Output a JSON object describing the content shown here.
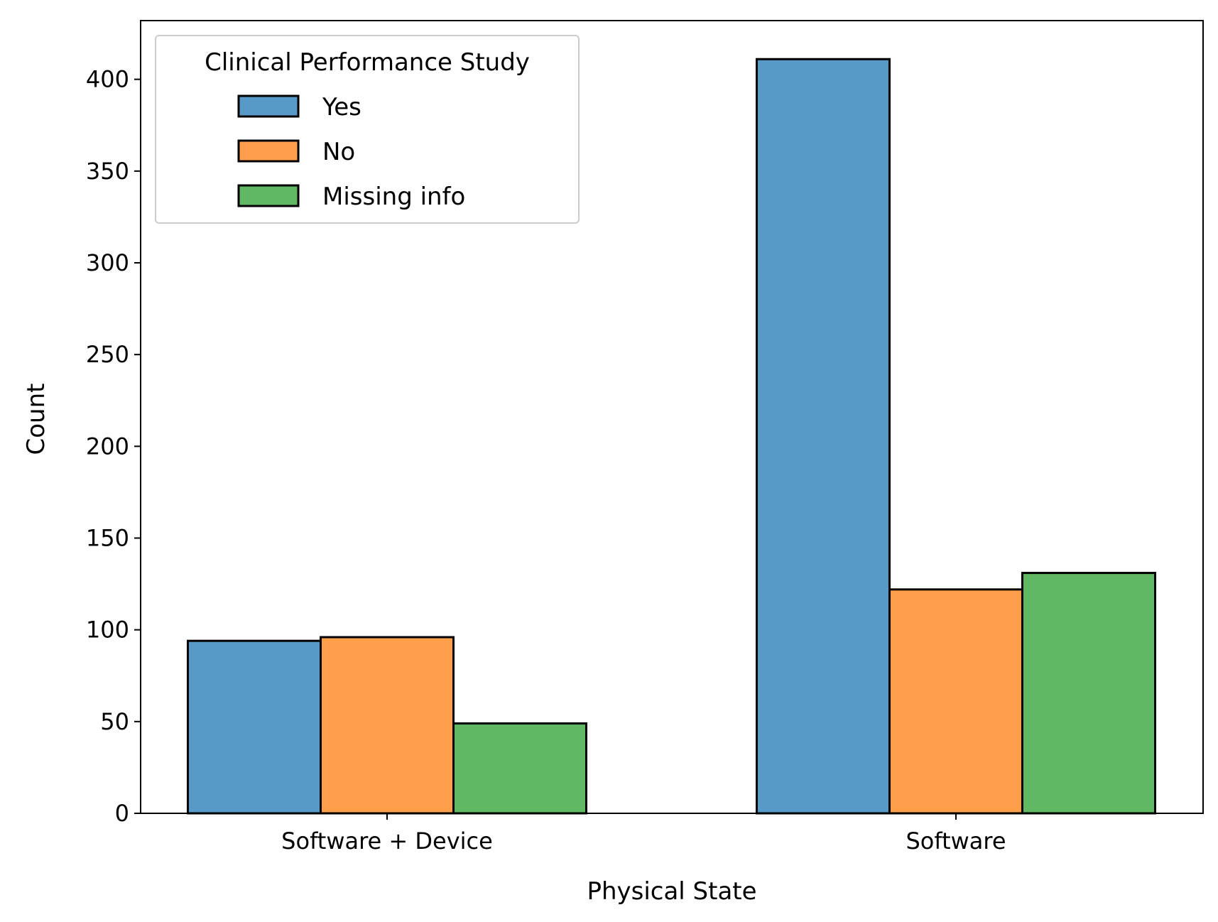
{
  "chart_data": {
    "type": "bar",
    "title": "",
    "xlabel": "Physical State",
    "ylabel": "Count",
    "categories": [
      "Software + Device",
      "Software"
    ],
    "series": [
      {
        "name": "Yes",
        "values": [
          94,
          411
        ],
        "color": "#5799c7"
      },
      {
        "name": "No",
        "values": [
          96,
          122
        ],
        "color": "#ff9f4b"
      },
      {
        "name": "Missing info",
        "values": [
          49,
          131
        ],
        "color": "#61b862"
      }
    ],
    "ylim": [
      0,
      432
    ],
    "yticks": [
      0,
      50,
      100,
      150,
      200,
      250,
      300,
      350,
      400
    ],
    "legend": {
      "title": "Clinical Performance Study",
      "position": "top-left"
    },
    "grid": false
  }
}
